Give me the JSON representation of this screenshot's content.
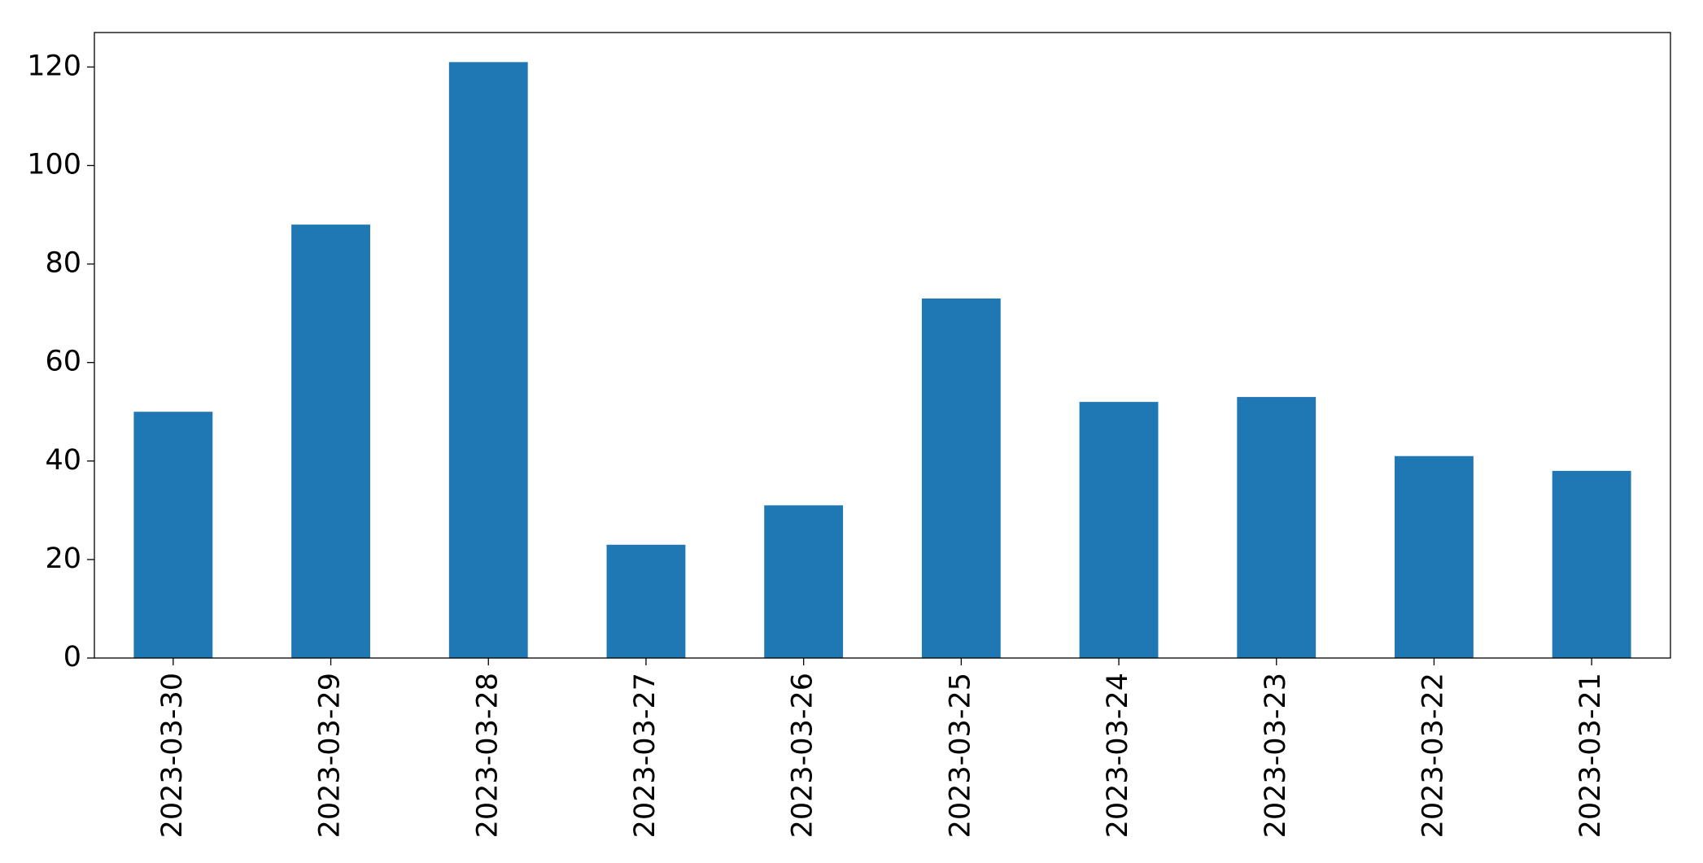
{
  "chart_data": {
    "type": "bar",
    "categories": [
      "2023-03-30",
      "2023-03-29",
      "2023-03-28",
      "2023-03-27",
      "2023-03-26",
      "2023-03-25",
      "2023-03-24",
      "2023-03-23",
      "2023-03-22",
      "2023-03-21"
    ],
    "values": [
      50,
      88,
      121,
      23,
      31,
      73,
      52,
      53,
      41,
      38
    ],
    "color": "#1f77b4",
    "ylim": [
      0,
      127
    ],
    "yticks": [
      0,
      20,
      40,
      60,
      80,
      100,
      120
    ],
    "grid": false
  }
}
